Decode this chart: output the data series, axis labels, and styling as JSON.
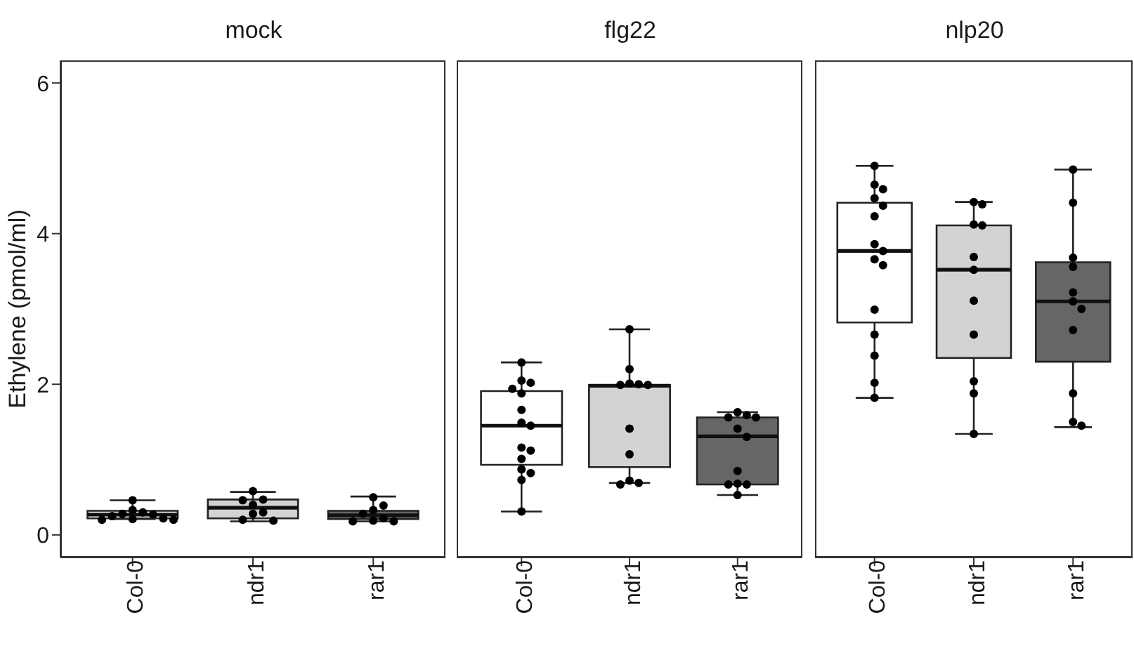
{
  "chart_data": [
    {
      "type": "box",
      "title": "mock",
      "ylabel": "Ethylene (pmol/ml)",
      "categories": [
        "Col-0",
        "ndr1",
        "rar1"
      ],
      "colors": [
        "#ffffff",
        "#d3d3d3",
        "#666666"
      ],
      "ylim": [
        -0.3,
        6.3
      ],
      "yticks": [
        0,
        2,
        4,
        6
      ],
      "boxes": [
        {
          "low": 0.21,
          "q1": 0.22,
          "median": 0.27,
          "q3": 0.32,
          "high": 0.46
        },
        {
          "low": 0.18,
          "q1": 0.22,
          "median": 0.36,
          "q3": 0.47,
          "high": 0.57
        },
        {
          "low": 0.18,
          "q1": 0.21,
          "median": 0.26,
          "q3": 0.32,
          "high": 0.51
        }
      ],
      "series": [
        {
          "type": "scatter",
          "color": "#000000",
          "x": [
            "Col-0",
            "Col-0",
            "Col-0",
            "Col-0",
            "Col-0",
            "Col-0",
            "Col-0",
            "Col-0",
            "Col-0",
            "Col-0",
            "ndr1",
            "ndr1",
            "ndr1",
            "ndr1",
            "ndr1",
            "ndr1",
            "ndr1",
            "ndr1",
            "rar1",
            "rar1",
            "rar1",
            "rar1",
            "rar1",
            "rar1",
            "rar1",
            "rar1"
          ],
          "values": [
            0.46,
            0.33,
            0.3,
            0.28,
            0.27,
            0.25,
            0.22,
            0.21,
            0.2,
            0.2,
            0.58,
            0.47,
            0.46,
            0.4,
            0.3,
            0.28,
            0.2,
            0.19,
            0.5,
            0.39,
            0.33,
            0.28,
            0.22,
            0.19,
            0.18,
            0.18
          ]
        }
      ]
    },
    {
      "type": "box",
      "title": "flg22",
      "categories": [
        "Col-0",
        "ndr1",
        "rar1"
      ],
      "colors": [
        "#ffffff",
        "#d3d3d3",
        "#666666"
      ],
      "ylim": [
        -0.3,
        6.3
      ],
      "yticks": [
        0,
        2,
        4,
        6
      ],
      "tick_labels": "x",
      "boxes": [
        {
          "low": 0.31,
          "q1": 0.93,
          "median": 1.45,
          "q3": 1.91,
          "high": 2.29
        },
        {
          "low": 0.69,
          "q1": 0.9,
          "median": 1.98,
          "q3": 1.99,
          "high": 2.73
        },
        {
          "low": 0.53,
          "q1": 0.67,
          "median": 1.31,
          "q3": 1.56,
          "high": 1.63
        }
      ],
      "series": [
        {
          "type": "scatter",
          "color": "#000000",
          "x": [
            "Col-0",
            "Col-0",
            "Col-0",
            "Col-0",
            "Col-0",
            "Col-0",
            "Col-0",
            "Col-0",
            "Col-0",
            "Col-0",
            "Col-0",
            "Col-0",
            "Col-0",
            "Col-0",
            "Col-0",
            "ndr1",
            "ndr1",
            "ndr1",
            "ndr1",
            "ndr1",
            "ndr1",
            "ndr1",
            "ndr1",
            "ndr1",
            "ndr1",
            "ndr1",
            "rar1",
            "rar1",
            "rar1",
            "rar1",
            "rar1",
            "rar1",
            "rar1",
            "rar1",
            "rar1",
            "rar1",
            "rar1"
          ],
          "values": [
            2.29,
            2.05,
            2.02,
            1.94,
            1.88,
            1.66,
            1.49,
            1.45,
            1.16,
            1.12,
            1.01,
            0.87,
            0.82,
            0.73,
            0.31,
            2.73,
            2.2,
            2.01,
            2.0,
            1.99,
            1.99,
            1.41,
            1.07,
            0.72,
            0.69,
            0.67,
            1.63,
            1.59,
            1.56,
            1.56,
            1.41,
            1.3,
            0.85,
            0.68,
            0.67,
            0.67,
            0.53
          ]
        }
      ]
    },
    {
      "type": "box",
      "title": "nlp20",
      "categories": [
        "Col-0",
        "ndr1",
        "rar1"
      ],
      "colors": [
        "#ffffff",
        "#d3d3d3",
        "#666666"
      ],
      "ylim": [
        -0.3,
        6.3
      ],
      "yticks": [
        0,
        2,
        4,
        6
      ],
      "tick_labels": "x",
      "boxes": [
        {
          "low": 1.82,
          "q1": 2.82,
          "median": 3.77,
          "q3": 4.41,
          "high": 4.9
        },
        {
          "low": 1.34,
          "q1": 2.35,
          "median": 3.52,
          "q3": 4.11,
          "high": 4.42
        },
        {
          "low": 1.43,
          "q1": 2.3,
          "median": 3.1,
          "q3": 3.62,
          "high": 4.85
        }
      ],
      "series": [
        {
          "type": "scatter",
          "color": "#000000",
          "x": [
            "Col-0",
            "Col-0",
            "Col-0",
            "Col-0",
            "Col-0",
            "Col-0",
            "Col-0",
            "Col-0",
            "Col-0",
            "Col-0",
            "Col-0",
            "Col-0",
            "Col-0",
            "Col-0",
            "Col-0",
            "ndr1",
            "ndr1",
            "ndr1",
            "ndr1",
            "ndr1",
            "ndr1",
            "ndr1",
            "ndr1",
            "ndr1",
            "ndr1",
            "ndr1",
            "rar1",
            "rar1",
            "rar1",
            "rar1",
            "rar1",
            "rar1",
            "rar1",
            "rar1",
            "rar1",
            "rar1",
            "rar1"
          ],
          "values": [
            4.9,
            4.65,
            4.59,
            4.47,
            4.37,
            4.23,
            3.86,
            3.77,
            3.66,
            3.58,
            2.99,
            2.66,
            2.38,
            2.02,
            1.82,
            4.42,
            4.39,
            4.12,
            4.11,
            3.69,
            3.52,
            3.11,
            2.66,
            2.04,
            1.88,
            1.34,
            4.85,
            4.41,
            3.68,
            3.56,
            3.22,
            3.1,
            3.0,
            2.72,
            1.88,
            1.5,
            1.45
          ]
        }
      ]
    }
  ]
}
